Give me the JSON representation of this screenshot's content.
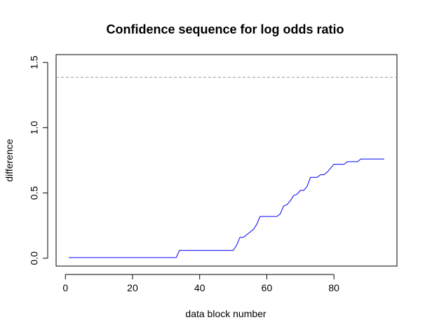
{
  "chart_data": {
    "type": "line",
    "title": "Confidence sequence for log odds ratio",
    "xlabel": "data block number",
    "ylabel": "difference",
    "xlim": [
      1,
      95
    ],
    "ylim": [
      0,
      1.5
    ],
    "x_ticks": [
      0,
      20,
      40,
      60,
      80
    ],
    "x_tick_labels": [
      "0",
      "20",
      "40",
      "60",
      "80"
    ],
    "y_ticks": [
      0,
      0.5,
      1,
      1.5
    ],
    "y_tick_labels": [
      "0.0",
      "0.5",
      "1.0",
      "1.5"
    ],
    "reference_line": {
      "y": 1.386,
      "style": "dashed",
      "color": "#9a9a9a"
    },
    "grid": false,
    "legend": "none",
    "series": [
      {
        "color": "#0000ff",
        "step": true,
        "x": [
          1,
          33,
          34,
          50,
          51,
          52,
          53,
          55,
          56,
          57,
          58,
          63,
          64,
          65,
          66,
          67,
          68,
          69,
          70,
          71,
          72,
          73,
          74,
          75,
          76,
          77,
          78,
          79,
          80,
          83,
          84,
          87,
          88,
          95
        ],
        "y": [
          0.005,
          0.005,
          0.06,
          0.06,
          0.1,
          0.16,
          0.16,
          0.2,
          0.22,
          0.26,
          0.32,
          0.32,
          0.34,
          0.4,
          0.41,
          0.44,
          0.48,
          0.49,
          0.52,
          0.52,
          0.55,
          0.62,
          0.62,
          0.62,
          0.64,
          0.64,
          0.66,
          0.69,
          0.72,
          0.72,
          0.74,
          0.74,
          0.76,
          0.76
        ]
      }
    ]
  }
}
